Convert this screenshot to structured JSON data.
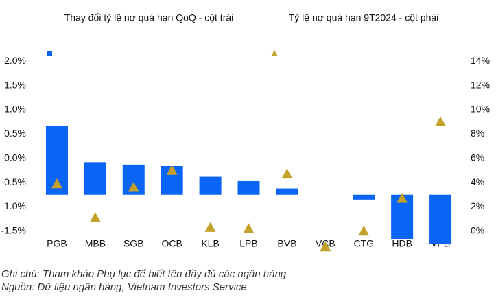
{
  "chart_data": {
    "type": "bar_triangle",
    "legend": [
      "Thay đổi tỷ lệ nợ quá hạn QoQ - cột trái",
      "Tỷ lệ nợ quá hạn 9T2024 - cột phải"
    ],
    "categories": [
      "PGB",
      "MBB",
      "SGB",
      "OCB",
      "KLB",
      "LPB",
      "BVB",
      "VCB",
      "CTG",
      "HDB",
      "VPB"
    ],
    "series": [
      {
        "name": "Thay đổi tỷ lệ nợ quá hạn QoQ - cột trái",
        "color": "#0a64f5",
        "axis": "y",
        "values": [
          0.67,
          -0.08,
          -0.13,
          -0.16,
          -0.38,
          -0.47,
          -0.62,
          -0.75,
          -0.85,
          -1.66,
          -1.76
        ]
      },
      {
        "name": "Tỷ lệ nợ quá hạn 9T2024 - cột phải",
        "color": "#c4a12a",
        "axis": "y2",
        "values": [
          3.9,
          1.1,
          3.6,
          5.0,
          0.3,
          0.2,
          4.7,
          -1.3,
          0.0,
          2.7,
          9.0
        ]
      }
    ],
    "x_axis_crosses": -0.75,
    "ylim": [
      -1.75,
      2.25
    ],
    "yticks": [
      {
        "value": -1.5,
        "label": "-1.5%"
      },
      {
        "value": -1.0,
        "label": "-1.0%"
      },
      {
        "value": -0.5,
        "label": "-0.5%"
      },
      {
        "value": 0,
        "label": "0.0%"
      },
      {
        "value": 0.5,
        "label": "0.5%"
      },
      {
        "value": 1.0,
        "label": "1.0%"
      },
      {
        "value": 1.5,
        "label": "1.5%"
      },
      {
        "value": 2.0,
        "label": "2.0%"
      }
    ],
    "y2lim": [
      -1,
      15
    ],
    "y2ticks": [
      {
        "value": 0,
        "label": "0%"
      },
      {
        "value": 2,
        "label": "2%"
      },
      {
        "value": 4,
        "label": "4%"
      },
      {
        "value": 6,
        "label": "6%"
      },
      {
        "value": 8,
        "label": "8%"
      },
      {
        "value": 10,
        "label": "10%"
      },
      {
        "value": 12,
        "label": "12%"
      },
      {
        "value": 14,
        "label": "14%"
      }
    ]
  },
  "notes": [
    "Ghi chú: Tham khảo Phụ lục để biết tên đầy đủ các ngân hàng",
    "Nguồn: Dữ liệu ngân hàng, Vietnam Investors Service"
  ]
}
